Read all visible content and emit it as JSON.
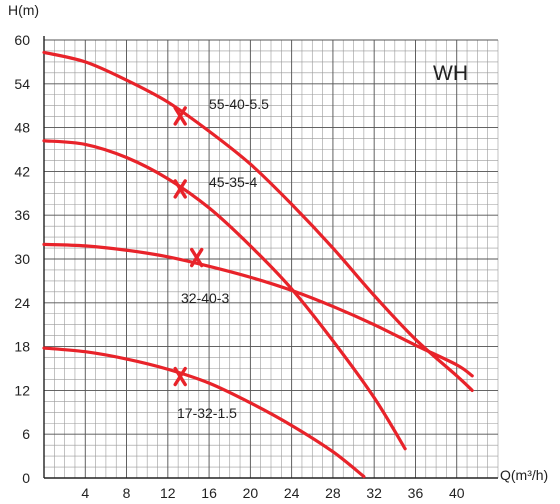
{
  "chart_data": {
    "type": "line",
    "title": "",
    "ylabel": "H(m)",
    "xlabel": "Q(m³/h)",
    "badge": "WH",
    "xlim": [
      0,
      44
    ],
    "ylim": [
      0,
      60
    ],
    "x_ticks": [
      "4",
      "8",
      "12",
      "16",
      "20",
      "24",
      "28",
      "32",
      "36",
      "40"
    ],
    "y_ticks": [
      "0",
      "6",
      "12",
      "18",
      "24",
      "30",
      "36",
      "42",
      "48",
      "54",
      "60"
    ],
    "x_tick_values": [
      4,
      8,
      12,
      16,
      20,
      24,
      28,
      32,
      36,
      40
    ],
    "y_tick_values": [
      0,
      6,
      12,
      18,
      24,
      30,
      36,
      42,
      48,
      54,
      60
    ],
    "grid": true,
    "grid_minor_step": {
      "x": 1,
      "y": 1.5
    },
    "series": [
      {
        "name": "55-40-5.5",
        "color": "#e8232a",
        "points": [
          [
            0,
            58.3
          ],
          [
            4,
            57.0
          ],
          [
            8,
            54.5
          ],
          [
            12,
            51.5
          ],
          [
            16,
            47.5
          ],
          [
            20,
            43.0
          ],
          [
            24,
            37.5
          ],
          [
            28,
            31.5
          ],
          [
            32,
            25.0
          ],
          [
            36,
            19.0
          ],
          [
            40,
            14.0
          ],
          [
            41.5,
            12.0
          ]
        ],
        "marker": [
          13.2,
          49.6
        ]
      },
      {
        "name": "45-35-4",
        "color": "#e8232a",
        "points": [
          [
            0,
            46.2
          ],
          [
            4,
            45.7
          ],
          [
            8,
            43.9
          ],
          [
            12,
            41.0
          ],
          [
            16,
            37.0
          ],
          [
            20,
            31.8
          ],
          [
            24,
            25.9
          ],
          [
            28,
            18.8
          ],
          [
            32,
            11.0
          ],
          [
            35,
            4.0
          ]
        ],
        "marker": [
          13.2,
          39.6
        ]
      },
      {
        "name": "32-40-3",
        "color": "#e8232a",
        "points": [
          [
            0,
            32.0
          ],
          [
            4,
            31.8
          ],
          [
            8,
            31.2
          ],
          [
            12,
            30.3
          ],
          [
            16,
            29.0
          ],
          [
            20,
            27.5
          ],
          [
            24,
            25.7
          ],
          [
            28,
            23.5
          ],
          [
            32,
            21.0
          ],
          [
            36,
            18.2
          ],
          [
            40,
            15.5
          ],
          [
            41.5,
            14.0
          ]
        ],
        "marker": [
          14.8,
          30.2
        ]
      },
      {
        "name": "17-32-1.5",
        "color": "#e8232a",
        "points": [
          [
            0,
            17.8
          ],
          [
            4,
            17.3
          ],
          [
            8,
            16.3
          ],
          [
            12,
            14.9
          ],
          [
            16,
            13.0
          ],
          [
            20,
            10.3
          ],
          [
            24,
            7.2
          ],
          [
            28,
            3.6
          ],
          [
            31,
            0.2
          ]
        ],
        "marker": [
          13.2,
          13.9
        ]
      }
    ]
  }
}
